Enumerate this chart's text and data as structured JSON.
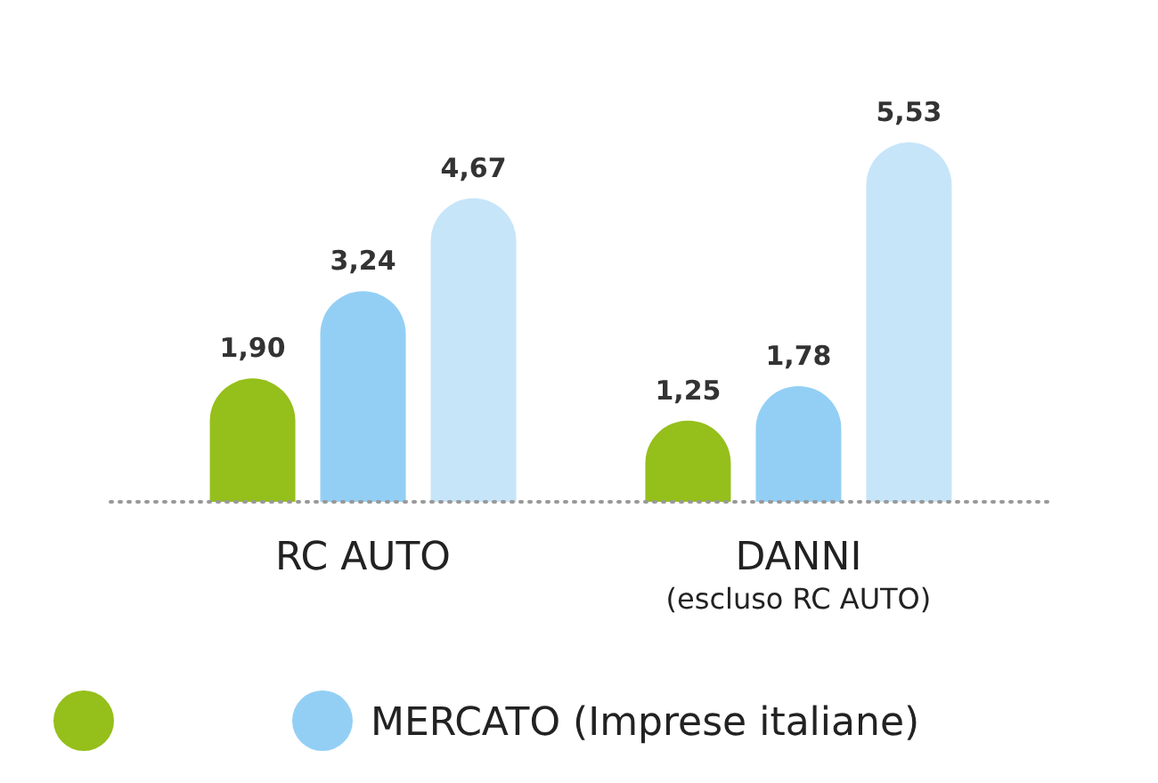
{
  "chart_data": {
    "type": "bar",
    "categories": [
      "RC AUTO",
      "DANNI\n(escluso RC AUTO)"
    ],
    "legend": "bottom",
    "tick_labels": "x",
    "series": [
      {
        "color": "#95bf1b",
        "values": [
          1.9,
          1.25
        ],
        "value_labels": [
          "1,90",
          "1,25"
        ]
      },
      {
        "name": "MERCATO (Imprese italiane)",
        "color": "#93cff5",
        "values": [
          3.24,
          1.78
        ],
        "value_labels": [
          "3,24",
          "1,78"
        ]
      },
      {
        "color": "#c6e5f9",
        "values": [
          4.67,
          5.53
        ],
        "value_labels": [
          "4,67",
          "5,53"
        ]
      }
    ]
  }
}
